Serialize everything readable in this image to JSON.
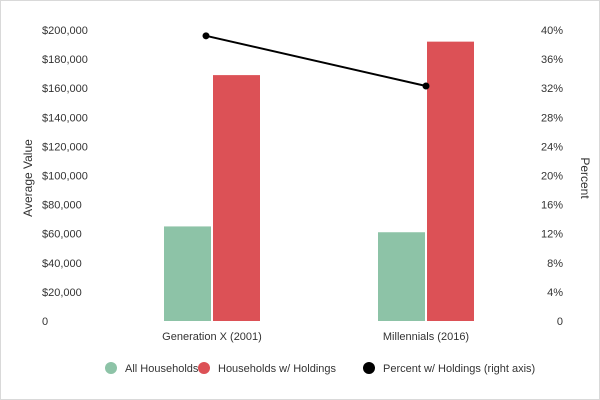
{
  "chart_data": {
    "type": "bar",
    "categories": [
      "Generation X (2001)",
      "Millennials (2016)"
    ],
    "series": [
      {
        "name": "All Households",
        "kind": "bar",
        "axis": "left",
        "color": "#8dc3a7",
        "values": [
          65000,
          61000
        ]
      },
      {
        "name": "Households w/ Holdings",
        "kind": "bar",
        "axis": "left",
        "color": "#dc5156",
        "values": [
          169000,
          192000
        ]
      },
      {
        "name": "Percent w/ Holdings (right axis)",
        "kind": "line",
        "axis": "right",
        "color": "#000000",
        "values": [
          39.2,
          32.3
        ]
      }
    ],
    "ylabel": "Average Value",
    "y2label": "Percent",
    "ylim": [
      0,
      200000
    ],
    "y2lim": [
      0,
      40
    ],
    "yticks": [
      "0",
      "$20,000",
      "$40,000",
      "$60,000",
      "$80,000",
      "$100,000",
      "$120,000",
      "$140,000",
      "$160,000",
      "$180,000",
      "$200,000"
    ],
    "y2ticks": [
      "0",
      "4%",
      "8%",
      "12%",
      "16%",
      "20%",
      "24%",
      "28%",
      "32%",
      "36%",
      "40%"
    ],
    "legend_position": "bottom",
    "grid": false
  }
}
